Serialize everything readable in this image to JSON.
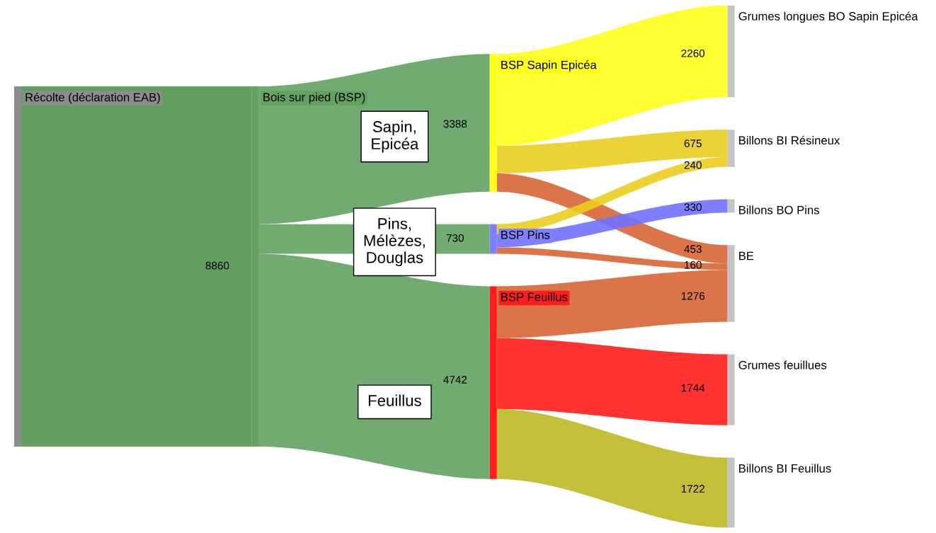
{
  "chart_data": {
    "type": "other",
    "categories": [
      "Récolte (déclaration EAB)",
      "Bois sur pied (BSP)",
      "BSP Sapin Epicéa",
      "BSP Pins",
      "BSP Feuillus",
      "Grumes longues BO Sapin Epicéa",
      "Billons BI Résineux",
      "Billons BO Pins",
      "BE",
      "Grumes feuillues",
      "Billons BI Feuillus"
    ],
    "colors": [
      "#8c8c8c",
      "#63a262",
      "#ffff1c",
      "#8080ff",
      "#ff1c1c",
      "#c4c4c4",
      "#c4c4c4",
      "#c4c4c4",
      "#c4c4c4",
      "#c4c4c4",
      "#c4c4c4"
    ],
    "series": [
      {
        "values": [
          null,
          8860,
          null,
          null,
          null,
          null,
          null,
          null,
          null,
          null,
          null
        ],
        "colors": [
          null,
          "#50944f",
          null,
          null,
          null,
          null,
          null,
          null,
          null,
          null,
          null
        ]
      },
      {
        "values": [
          null,
          null,
          3388,
          730,
          4742,
          null,
          null,
          null,
          null,
          null,
          null
        ],
        "colors": [
          null,
          null,
          "#63a262",
          "#63a262",
          "#63a262",
          null,
          null,
          null,
          null,
          null,
          null
        ]
      },
      {
        "values": [
          null,
          null,
          null,
          null,
          null,
          2260,
          675,
          null,
          453,
          null,
          null
        ],
        "colors": [
          null,
          null,
          null,
          null,
          null,
          "#ffff1c",
          "#ebcd1f",
          null,
          "#d86535",
          null,
          null
        ]
      },
      {
        "values": [
          null,
          null,
          null,
          null,
          null,
          null,
          240,
          330,
          160,
          null,
          null
        ],
        "colors": [
          null,
          null,
          null,
          null,
          null,
          null,
          "#ebcd1f",
          "#7070ff",
          "#d86535",
          null,
          null
        ]
      },
      {
        "values": [
          null,
          null,
          null,
          null,
          null,
          null,
          null,
          null,
          1276,
          1744,
          1722
        ],
        "colors": [
          null,
          null,
          null,
          null,
          null,
          null,
          null,
          null,
          "#d86535",
          "#ff1c1c",
          "#bdb822"
        ]
      }
    ],
    "data_labels": true,
    "annotations": [
      "Sapin,\nEpicéa",
      "Pins,\nMélèzes,\nDouglas",
      "Feuillus"
    ]
  }
}
